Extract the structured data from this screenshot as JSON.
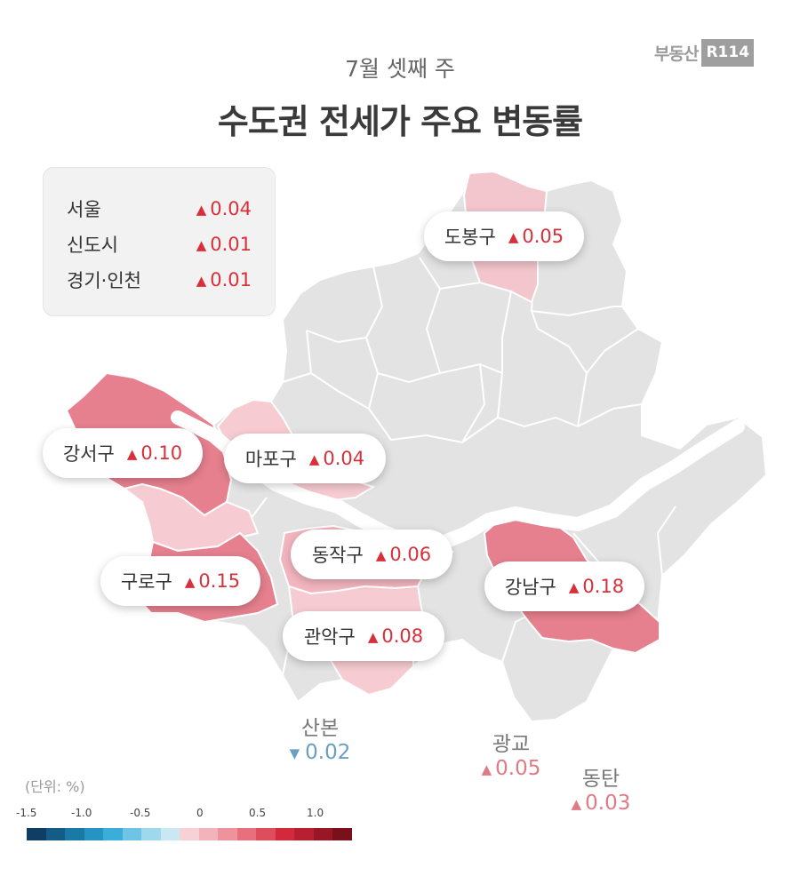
{
  "header": {
    "subtitle": "7월 셋째 주",
    "title": "수도권 전세가 주요 변동률",
    "logo_text": "부동산",
    "logo_box": "R114"
  },
  "summary": [
    {
      "name": "서울",
      "value": "0.04",
      "direction": "up"
    },
    {
      "name": "신도시",
      "value": "0.01",
      "direction": "up"
    },
    {
      "name": "경기·인천",
      "value": "0.01",
      "direction": "up"
    }
  ],
  "districts": [
    {
      "name": "도봉구",
      "value": "0.05",
      "direction": "up"
    },
    {
      "name": "강서구",
      "value": "0.10",
      "direction": "up"
    },
    {
      "name": "마포구",
      "value": "0.04",
      "direction": "up"
    },
    {
      "name": "동작구",
      "value": "0.06",
      "direction": "up"
    },
    {
      "name": "구로구",
      "value": "0.15",
      "direction": "up"
    },
    {
      "name": "강남구",
      "value": "0.18",
      "direction": "up"
    },
    {
      "name": "관악구",
      "value": "0.08",
      "direction": "up"
    }
  ],
  "outside": [
    {
      "name": "산본",
      "value": "0.02",
      "direction": "down"
    },
    {
      "name": "광교",
      "value": "0.05",
      "direction": "up"
    },
    {
      "name": "동탄",
      "value": "0.03",
      "direction": "up"
    }
  ],
  "legend": {
    "unit": "(단위:  %)",
    "ticks": [
      "-1.5",
      "-1.0",
      "-0.5",
      "0",
      "0.5",
      "1.0"
    ],
    "colors": [
      "#0f3d63",
      "#145b85",
      "#1b79a8",
      "#2594c4",
      "#3aaed8",
      "#6ec4e4",
      "#9fd7ed",
      "#c9e8f3",
      "#f6d2d6",
      "#f2b3ba",
      "#ee929c",
      "#e7707c",
      "#de4d5c",
      "#d22a3c",
      "#b81f30",
      "#981625",
      "#7a101c"
    ]
  },
  "colors": {
    "base_map": "#e3e3e3",
    "river": "#ffffff",
    "border": "#ffffff",
    "up_text": "#d8303a",
    "down_text": "#6a9fbf"
  }
}
